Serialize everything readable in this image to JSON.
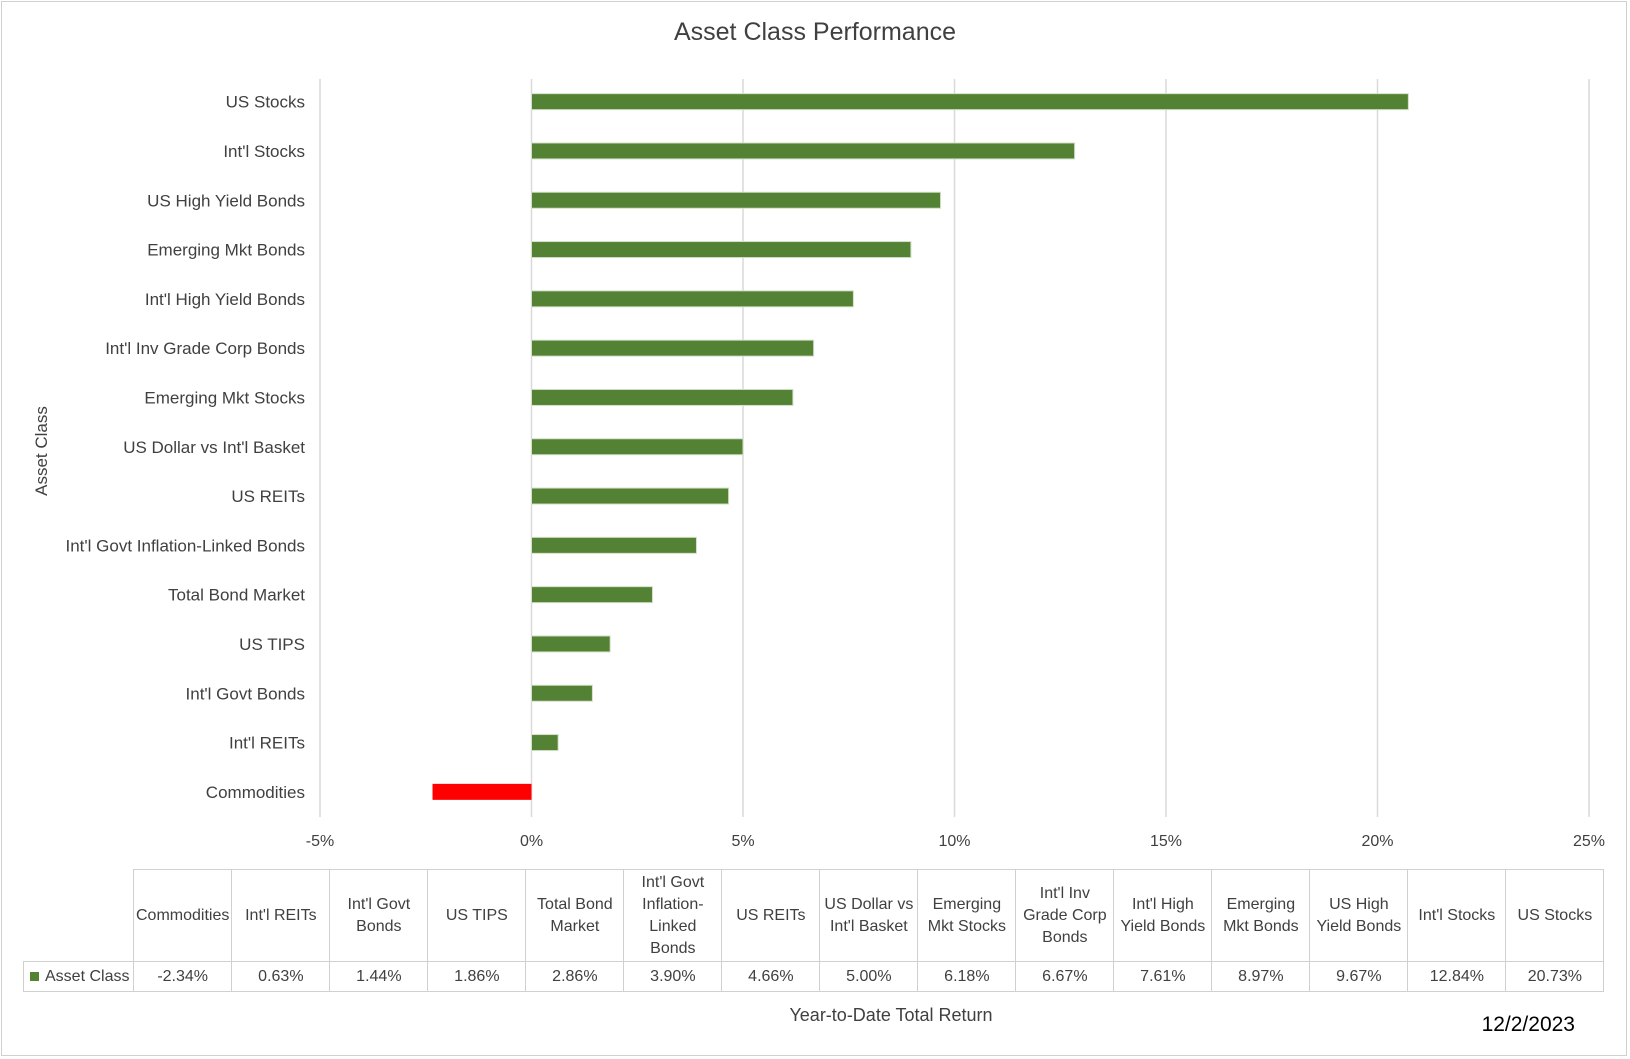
{
  "chart_data": {
    "type": "bar",
    "orientation": "horizontal",
    "title": "Asset Class Performance",
    "xlabel": "Year-to-Date Total Return",
    "ylabel": "Asset Class",
    "date": "12/2/2023",
    "xlim": [
      -5,
      25
    ],
    "xticks": [
      "-5%",
      "0%",
      "5%",
      "10%",
      "15%",
      "20%",
      "25%"
    ],
    "gridlines": true,
    "series": [
      {
        "name": "Asset Class",
        "color": "#548235",
        "negative_color": "#ff0000",
        "categories": [
          "US Stocks",
          "Int'l Stocks",
          "US High Yield Bonds",
          "Emerging Mkt Bonds",
          "Int'l High Yield Bonds",
          "Int'l Inv Grade Corp Bonds",
          "Emerging Mkt Stocks",
          "US Dollar vs Int'l Basket",
          "US REITs",
          "Int'l Govt Inflation-Linked Bonds",
          "Total Bond Market",
          "US TIPS",
          "Int'l Govt Bonds",
          "Int'l REITs",
          "Commodities"
        ],
        "values": [
          20.73,
          12.84,
          9.67,
          8.97,
          7.61,
          6.67,
          6.18,
          5.0,
          4.66,
          3.9,
          2.86,
          1.86,
          1.44,
          0.63,
          -2.34
        ]
      }
    ],
    "data_table": {
      "headers": [
        "Commodities",
        "Int'l REITs",
        "Int'l Govt Bonds",
        "US TIPS",
        "Total Bond Market",
        "Int'l Govt Inflation-Linked Bonds",
        "US REITs",
        "US Dollar vs Int'l Basket",
        "Emerging Mkt Stocks",
        "Int'l Inv Grade Corp Bonds",
        "Int'l High Yield Bonds",
        "Emerging Mkt Bonds",
        "US High Yield Bonds",
        "Int'l Stocks",
        "US Stocks"
      ],
      "row_label": "Asset Class",
      "values": [
        "-2.34%",
        "0.63%",
        "1.44%",
        "1.86%",
        "2.86%",
        "3.90%",
        "4.66%",
        "5.00%",
        "6.18%",
        "6.67%",
        "7.61%",
        "8.97%",
        "9.67%",
        "12.84%",
        "20.73%"
      ]
    }
  }
}
